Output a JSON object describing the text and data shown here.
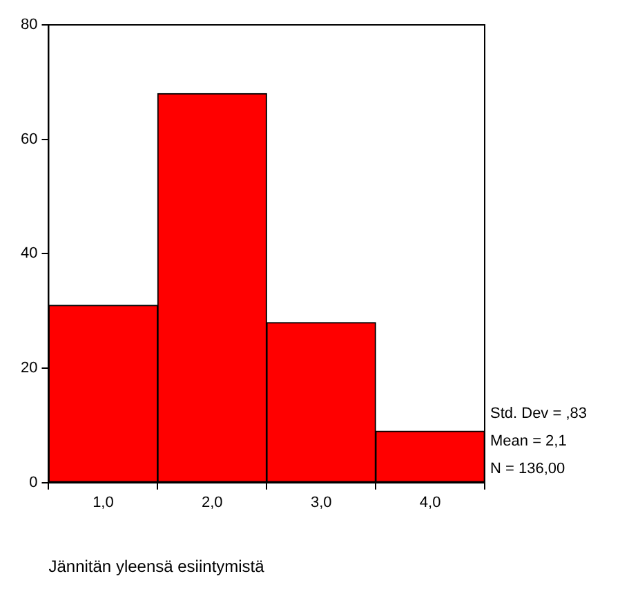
{
  "chart_data": {
    "type": "histogram",
    "xlabel": "Jännitän yleensä esiintymistä",
    "bins": [
      0.5,
      1.5,
      2.5,
      3.5,
      4.5
    ],
    "values": [
      31,
      68,
      28,
      9
    ],
    "color": "#ff0000",
    "xlim": [
      0.5,
      4.5
    ],
    "xticks": [
      {
        "value": 1,
        "label": "1,0"
      },
      {
        "value": 2,
        "label": "2,0"
      },
      {
        "value": 3,
        "label": "3,0"
      },
      {
        "value": 4,
        "label": "4,0"
      }
    ],
    "ylim": [
      0,
      80
    ],
    "yticks": [
      0,
      20,
      40,
      60,
      80
    ],
    "grid": false,
    "legend": false,
    "annotations": [
      "Std. Dev = ,83",
      "Mean = 2,1",
      "N = 136,00"
    ]
  }
}
